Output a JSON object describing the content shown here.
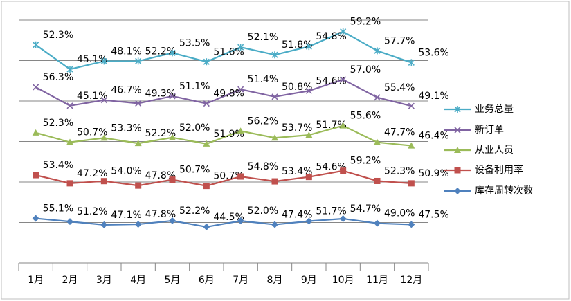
{
  "chart_data": {
    "type": "stacked_line",
    "categories": [
      "1月",
      "2月",
      "3月",
      "4月",
      "5月",
      "6月",
      "7月",
      "8月",
      "9月",
      "10月",
      "11月",
      "12月"
    ],
    "ylim": [
      0,
      300
    ],
    "yticks": [
      0,
      50,
      100,
      150,
      200,
      250,
      300
    ],
    "grid": true,
    "series": [
      {
        "name": "库存周转次数",
        "color": "#4f81bd",
        "marker": "diamond",
        "values": [
          55.1,
          51.2,
          47.1,
          47.8,
          52.2,
          44.5,
          52.0,
          47.4,
          51.7,
          54.7,
          49.0,
          47.5
        ],
        "value_labels": [
          "55.1%",
          "51.2%",
          "47.1%",
          "47.8%",
          "52.2%",
          "44.5%",
          "52.0%",
          "47.4%",
          "51.7%",
          "54.7%",
          "49.0%",
          "47.5%"
        ]
      },
      {
        "name": "设备利用率",
        "color": "#c0504d",
        "marker": "square",
        "values": [
          53.4,
          47.2,
          54.0,
          47.8,
          50.7,
          50.7,
          54.8,
          53.4,
          54.6,
          59.2,
          52.3,
          50.9
        ],
        "value_labels": [
          "53.4%",
          "47.2%",
          "54.0%",
          "47.8%",
          "50.7%",
          "50.7%",
          "54.8%",
          "53.4%",
          "54.6%",
          "59.2%",
          "52.3%",
          "50.9%"
        ]
      },
      {
        "name": "从业人员",
        "color": "#9bbb59",
        "marker": "triangle",
        "values": [
          52.3,
          50.7,
          53.3,
          52.2,
          52.0,
          51.9,
          56.2,
          53.7,
          51.7,
          55.6,
          47.7,
          46.4
        ],
        "value_labels": [
          "52.3%",
          "50.7%",
          "53.3%",
          "52.2%",
          "52.0%",
          "51.9%",
          "56.2%",
          "53.7%",
          "51.7%",
          "55.6%",
          "47.7%",
          "46.4%"
        ]
      },
      {
        "name": "新订单",
        "color": "#8064a2",
        "marker": "x",
        "values": [
          56.3,
          45.1,
          46.7,
          49.3,
          51.1,
          49.8,
          51.4,
          50.8,
          54.6,
          57.0,
          55.4,
          49.1
        ],
        "value_labels": [
          "56.3%",
          "45.1%",
          "46.7%",
          "49.3%",
          "51.1%",
          "49.8%",
          "51.4%",
          "50.8%",
          "54.6%",
          "57.0%",
          "55.4%",
          "49.1%"
        ]
      },
      {
        "name": "业务总量",
        "color": "#4bacc6",
        "marker": "star",
        "values": [
          52.3,
          45.1,
          48.1,
          52.2,
          53.5,
          51.6,
          52.1,
          51.8,
          54.8,
          59.2,
          57.7,
          53.6
        ],
        "value_labels": [
          "52.3%",
          "45.1%",
          "48.1%",
          "52.2%",
          "53.5%",
          "51.6%",
          "52.1%",
          "51.8%",
          "54.8%",
          "59.2%",
          "57.7%",
          "53.6%"
        ]
      }
    ]
  }
}
